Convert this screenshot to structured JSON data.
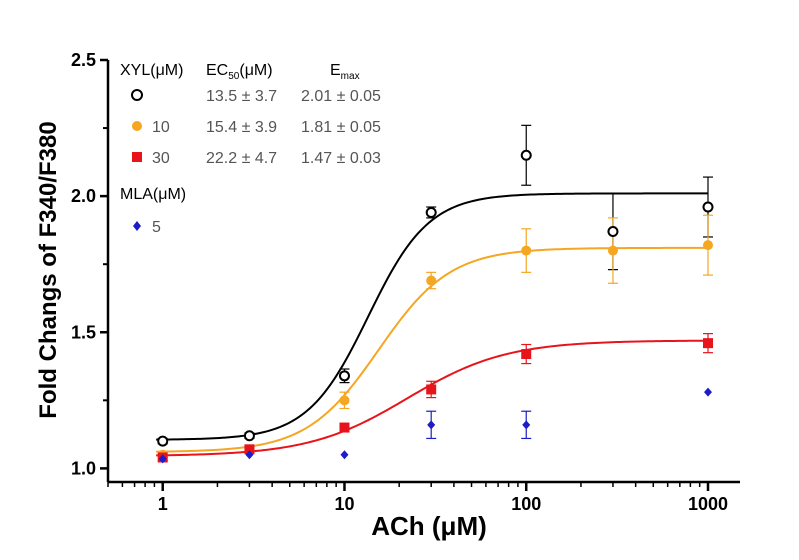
{
  "chart_data": {
    "type": "scatter",
    "title": "",
    "xlabel": "ACh (μM)",
    "ylabel": "Fold Changs of F340/F380",
    "xscale": "log",
    "xlim": [
      0.5,
      1500
    ],
    "ylim": [
      0.95,
      2.5
    ],
    "yticks": [
      "1.0",
      "1.5",
      "2.0",
      "2.5"
    ],
    "xticks": [
      "1",
      "10",
      "100",
      "1000"
    ],
    "legend": {
      "header_group": "XYL(μM)",
      "header_ec50_main": "EC",
      "header_ec50_sub": "50",
      "header_ec50_unit": "(μM)",
      "header_emax_main": "E",
      "header_emax_sub": "max",
      "group2_header": "MLA(μM)",
      "rows": [
        {
          "label": "",
          "ec50": "13.5 ± 3.7",
          "emax": "2.01 ± 0.05"
        },
        {
          "label": "10",
          "ec50": "15.4 ± 3.9",
          "emax": "1.81 ± 0.05"
        },
        {
          "label": "30",
          "ec50": "22.2 ± 4.7",
          "emax": "1.47 ± 0.03"
        },
        {
          "label": "5",
          "ec50": "",
          "emax": ""
        }
      ]
    },
    "series": [
      {
        "marker": "open-circle",
        "color": "#000000",
        "x": [
          1,
          3,
          10,
          30,
          100,
          300,
          1000
        ],
        "y": [
          1.1,
          1.12,
          1.34,
          1.94,
          2.15,
          1.87,
          1.96
        ],
        "err": [
          0.01,
          0.01,
          0.025,
          0.02,
          0.11,
          0.14,
          0.11
        ],
        "fit": {
          "bottom": 1.105,
          "top": 2.01,
          "ec50": 13.5,
          "hill": 2.6
        }
      },
      {
        "marker": "filled-circle",
        "color": "#f5a623",
        "x": [
          1,
          3,
          10,
          30,
          100,
          300,
          1000
        ],
        "y": [
          1.05,
          1.07,
          1.25,
          1.69,
          1.8,
          1.8,
          1.82
        ],
        "err": [
          0.01,
          0.01,
          0.03,
          0.03,
          0.08,
          0.12,
          0.11
        ],
        "fit": {
          "bottom": 1.06,
          "top": 1.81,
          "ec50": 15.4,
          "hill": 2.2
        }
      },
      {
        "marker": "filled-square",
        "color": "#e8141c",
        "x": [
          1,
          3,
          10,
          30,
          100,
          1000
        ],
        "y": [
          1.04,
          1.07,
          1.15,
          1.29,
          1.42,
          1.46
        ],
        "err": [
          0.01,
          0.01,
          0.015,
          0.03,
          0.035,
          0.035
        ],
        "fit": {
          "bottom": 1.045,
          "top": 1.47,
          "ec50": 22.2,
          "hill": 1.6
        }
      },
      {
        "marker": "filled-diamond",
        "color": "#1c1cc8",
        "x": [
          1,
          3,
          10,
          30,
          100,
          1000
        ],
        "y": [
          1.035,
          1.05,
          1.05,
          1.16,
          1.16,
          1.28
        ],
        "err": [
          0,
          0,
          0,
          0.05,
          0.05,
          0
        ]
      }
    ]
  }
}
